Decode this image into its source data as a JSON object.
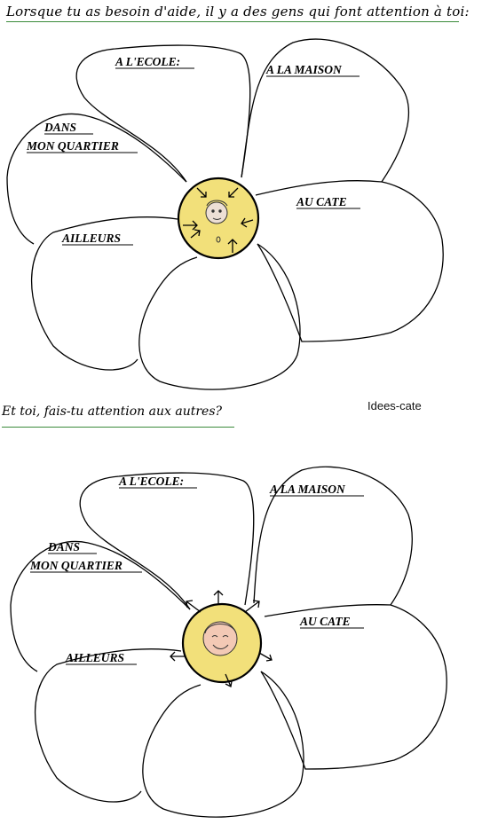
{
  "page": {
    "title": "Lorsque tu as besoin d'aide, il y a des gens qui font attention à toi:",
    "subtitle": "Et toi, fais-tu attention aux autres?",
    "credit": "Idees-cate"
  },
  "flower_top": {
    "petals": {
      "school": "A L'ECOLE:",
      "home": "A LA MAISON",
      "neighborhood_line1": "DANS",
      "neighborhood_line2": "MON QUARTIER",
      "catechism": "AU CATE",
      "elsewhere": "AILLEURS"
    },
    "center": "face with arrows pointing inward"
  },
  "flower_bottom": {
    "petals": {
      "school": "A L'ECOLE:",
      "home": "A LA MAISON",
      "neighborhood_line1": "DANS",
      "neighborhood_line2": "MON QUARTIER",
      "catechism": "AU CATE",
      "elsewhere": "AILLEURS"
    },
    "center": "face with arrows pointing outward"
  },
  "colors": {
    "rule": "#3a8a3a",
    "center_fill": "#f2e07a",
    "outline": "#000000"
  }
}
